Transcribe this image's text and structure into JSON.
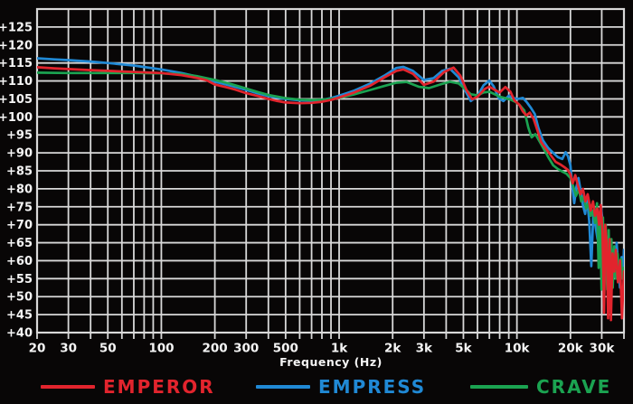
{
  "chart_data": {
    "type": "line",
    "title": "",
    "xlabel": "Frequency  (Hz)",
    "ylabel": "",
    "x_scale": "log",
    "x_range_hz": [
      20,
      40000
    ],
    "y_range_db": [
      40,
      130
    ],
    "grid": true,
    "grid_color": "#d8d8d8",
    "background_color": "#080606",
    "text_color": "#f5f5f5",
    "legend_position": "bottom",
    "y_ticks": [
      {
        "db": 125,
        "label": "+125"
      },
      {
        "db": 120,
        "label": "+120"
      },
      {
        "db": 115,
        "label": "+115"
      },
      {
        "db": 110,
        "label": "+110"
      },
      {
        "db": 105,
        "label": "+105"
      },
      {
        "db": 100,
        "label": "+100"
      },
      {
        "db": 95,
        "label": "+95"
      },
      {
        "db": 90,
        "label": "+90"
      },
      {
        "db": 85,
        "label": "+85"
      },
      {
        "db": 80,
        "label": "+80"
      },
      {
        "db": 75,
        "label": "+75"
      },
      {
        "db": 70,
        "label": "+70"
      },
      {
        "db": 65,
        "label": "+65"
      },
      {
        "db": 60,
        "label": "+60"
      },
      {
        "db": 55,
        "label": "+55"
      },
      {
        "db": 50,
        "label": "+50"
      },
      {
        "db": 45,
        "label": "+45"
      },
      {
        "db": 40,
        "label": "+40"
      }
    ],
    "x_ticks": [
      {
        "hz": 20,
        "label": "20"
      },
      {
        "hz": 30,
        "label": "30"
      },
      {
        "hz": 50,
        "label": "50"
      },
      {
        "hz": 100,
        "label": "100"
      },
      {
        "hz": 200,
        "label": "200"
      },
      {
        "hz": 300,
        "label": "300"
      },
      {
        "hz": 500,
        "label": "500"
      },
      {
        "hz": 1000,
        "label": "1k"
      },
      {
        "hz": 2000,
        "label": "2k"
      },
      {
        "hz": 3000,
        "label": "3k"
      },
      {
        "hz": 5000,
        "label": "5k"
      },
      {
        "hz": 10000,
        "label": "10k"
      },
      {
        "hz": 20000,
        "label": "20k"
      },
      {
        "hz": 30000,
        "label": "30k"
      }
    ],
    "x_minor_gridlines_hz": [
      30,
      40,
      50,
      60,
      70,
      80,
      90,
      100,
      200,
      300,
      400,
      500,
      600,
      700,
      800,
      900,
      1000,
      2000,
      3000,
      4000,
      5000,
      6000,
      7000,
      8000,
      9000,
      10000,
      20000,
      30000
    ],
    "series": [
      {
        "name": "EMPEROR",
        "color": "#e2242d",
        "points": [
          [
            20,
            113.8
          ],
          [
            25,
            113.5
          ],
          [
            30,
            113.3
          ],
          [
            40,
            113.0
          ],
          [
            50,
            112.8
          ],
          [
            70,
            112.5
          ],
          [
            100,
            112.2
          ],
          [
            130,
            111.6
          ],
          [
            160,
            110.8
          ],
          [
            180,
            110.2
          ],
          [
            200,
            109.0
          ],
          [
            230,
            108.3
          ],
          [
            260,
            107.6
          ],
          [
            300,
            106.6
          ],
          [
            350,
            105.8
          ],
          [
            400,
            105.0
          ],
          [
            450,
            104.4
          ],
          [
            500,
            104.0
          ],
          [
            600,
            103.8
          ],
          [
            700,
            103.9
          ],
          [
            800,
            104.2
          ],
          [
            900,
            104.7
          ],
          [
            1000,
            105.4
          ],
          [
            1200,
            106.7
          ],
          [
            1500,
            108.7
          ],
          [
            1800,
            111.0
          ],
          [
            2100,
            112.8
          ],
          [
            2300,
            113.2
          ],
          [
            2600,
            112.0
          ],
          [
            3000,
            108.9
          ],
          [
            3400,
            109.8
          ],
          [
            3900,
            112.5
          ],
          [
            4400,
            113.7
          ],
          [
            4800,
            111.5
          ],
          [
            5200,
            107.5
          ],
          [
            5600,
            104.9
          ],
          [
            6000,
            105.6
          ],
          [
            6600,
            107.8
          ],
          [
            7000,
            108.4
          ],
          [
            7500,
            107.5
          ],
          [
            8000,
            106.8
          ],
          [
            8600,
            108.3
          ],
          [
            9200,
            107.0
          ],
          [
            9700,
            104.5
          ],
          [
            10300,
            103.4
          ],
          [
            10800,
            101.5
          ],
          [
            11300,
            100.4
          ],
          [
            11800,
            101.2
          ],
          [
            12400,
            99.5
          ],
          [
            13000,
            96.5
          ],
          [
            13700,
            93.0
          ],
          [
            14500,
            91.3
          ],
          [
            15500,
            89.3
          ],
          [
            16500,
            87.5
          ],
          [
            17500,
            86.8
          ],
          [
            18500,
            86.0
          ],
          [
            19300,
            85.3
          ],
          [
            20000,
            84.0
          ],
          [
            20600,
            81.5
          ],
          [
            21300,
            83.8
          ],
          [
            22000,
            81.0
          ],
          [
            22800,
            78.5
          ],
          [
            23500,
            80.0
          ],
          [
            24300,
            76.5
          ],
          [
            25000,
            78.5
          ],
          [
            26000,
            74.0
          ],
          [
            26800,
            76.5
          ],
          [
            27500,
            72.5
          ],
          [
            28300,
            74.5
          ],
          [
            29000,
            70.0
          ],
          [
            29600,
            75.5
          ],
          [
            30300,
            68.0
          ],
          [
            30900,
            45.5
          ],
          [
            31400,
            70.0
          ],
          [
            32000,
            65.0
          ],
          [
            32600,
            44.0
          ],
          [
            33200,
            66.0
          ],
          [
            33800,
            43.5
          ],
          [
            34500,
            62.0
          ],
          [
            35300,
            57.0
          ],
          [
            36000,
            63.0
          ],
          [
            37000,
            54.0
          ],
          [
            38000,
            60.0
          ],
          [
            39000,
            44.0
          ],
          [
            40000,
            57.0
          ]
        ]
      },
      {
        "name": "EMPRESS",
        "color": "#2089d5",
        "points": [
          [
            20,
            116.3
          ],
          [
            25,
            116.0
          ],
          [
            30,
            115.8
          ],
          [
            40,
            115.4
          ],
          [
            50,
            115.0
          ],
          [
            70,
            114.3
          ],
          [
            100,
            113.2
          ],
          [
            130,
            112.2
          ],
          [
            160,
            111.2
          ],
          [
            200,
            109.8
          ],
          [
            240,
            108.8
          ],
          [
            300,
            107.5
          ],
          [
            350,
            106.5
          ],
          [
            400,
            105.8
          ],
          [
            500,
            105.0
          ],
          [
            600,
            104.6
          ],
          [
            700,
            104.5
          ],
          [
            800,
            104.7
          ],
          [
            900,
            105.2
          ],
          [
            1000,
            105.9
          ],
          [
            1200,
            107.2
          ],
          [
            1500,
            109.3
          ],
          [
            1800,
            111.5
          ],
          [
            2100,
            113.6
          ],
          [
            2300,
            113.9
          ],
          [
            2600,
            112.8
          ],
          [
            3000,
            110.3
          ],
          [
            3400,
            110.8
          ],
          [
            3800,
            112.8
          ],
          [
            4200,
            113.4
          ],
          [
            4700,
            111.0
          ],
          [
            5100,
            107.5
          ],
          [
            5500,
            104.4
          ],
          [
            6000,
            105.8
          ],
          [
            6500,
            108.8
          ],
          [
            7000,
            110.1
          ],
          [
            7400,
            108.5
          ],
          [
            7900,
            105.2
          ],
          [
            8400,
            104.4
          ],
          [
            9000,
            105.9
          ],
          [
            9600,
            105.2
          ],
          [
            10200,
            105.0
          ],
          [
            10800,
            105.3
          ],
          [
            11400,
            104.0
          ],
          [
            12000,
            102.5
          ],
          [
            12600,
            100.8
          ],
          [
            13200,
            97.0
          ],
          [
            14000,
            93.5
          ],
          [
            15000,
            91.3
          ],
          [
            16000,
            90.0
          ],
          [
            17000,
            88.8
          ],
          [
            18000,
            88.3
          ],
          [
            18800,
            90.2
          ],
          [
            19400,
            89.0
          ],
          [
            20000,
            86.5
          ],
          [
            20500,
            80.5
          ],
          [
            21000,
            76.0
          ],
          [
            21600,
            80.5
          ],
          [
            22200,
            83.0
          ],
          [
            22900,
            79.0
          ],
          [
            23500,
            75.5
          ],
          [
            24200,
            73.0
          ],
          [
            24800,
            77.5
          ],
          [
            25500,
            71.0
          ],
          [
            26200,
            58.5
          ],
          [
            26900,
            73.0
          ],
          [
            27600,
            70.0
          ],
          [
            28400,
            66.0
          ],
          [
            29000,
            71.5
          ],
          [
            29800,
            74.5
          ],
          [
            30500,
            70.0
          ],
          [
            31200,
            60.0
          ],
          [
            31800,
            55.0
          ],
          [
            32500,
            63.0
          ],
          [
            33200,
            57.0
          ],
          [
            34000,
            52.0
          ],
          [
            34800,
            60.0
          ],
          [
            35600,
            55.5
          ],
          [
            36400,
            65.0
          ],
          [
            37200,
            58.0
          ],
          [
            38000,
            52.5
          ],
          [
            38800,
            61.0
          ],
          [
            39500,
            56.0
          ],
          [
            40000,
            63.0
          ]
        ]
      },
      {
        "name": "CRAVE",
        "color": "#1ba351",
        "points": [
          [
            20,
            112.3
          ],
          [
            30,
            112.2
          ],
          [
            50,
            112.2
          ],
          [
            70,
            112.2
          ],
          [
            100,
            112.1
          ],
          [
            130,
            111.9
          ],
          [
            160,
            111.3
          ],
          [
            200,
            110.3
          ],
          [
            240,
            109.3
          ],
          [
            300,
            107.9
          ],
          [
            350,
            106.9
          ],
          [
            400,
            106.1
          ],
          [
            500,
            105.2
          ],
          [
            600,
            104.8
          ],
          [
            700,
            104.7
          ],
          [
            800,
            104.8
          ],
          [
            900,
            105.0
          ],
          [
            1000,
            105.3
          ],
          [
            1200,
            106.2
          ],
          [
            1500,
            107.5
          ],
          [
            1800,
            108.6
          ],
          [
            2100,
            109.5
          ],
          [
            2400,
            109.7
          ],
          [
            2800,
            108.4
          ],
          [
            3200,
            108.0
          ],
          [
            3700,
            109.0
          ],
          [
            4200,
            109.8
          ],
          [
            4700,
            109.3
          ],
          [
            5100,
            107.8
          ],
          [
            5500,
            106.3
          ],
          [
            6000,
            106.0
          ],
          [
            6500,
            106.8
          ],
          [
            7000,
            107.0
          ],
          [
            7500,
            106.3
          ],
          [
            8000,
            105.6
          ],
          [
            8600,
            105.2
          ],
          [
            9200,
            104.8
          ],
          [
            9800,
            104.2
          ],
          [
            10400,
            103.2
          ],
          [
            11000,
            101.8
          ],
          [
            11600,
            97.0
          ],
          [
            12100,
            94.3
          ],
          [
            12700,
            95.2
          ],
          [
            13300,
            93.5
          ],
          [
            14000,
            91.5
          ],
          [
            15000,
            88.8
          ],
          [
            16000,
            86.5
          ],
          [
            17000,
            85.5
          ],
          [
            18000,
            84.8
          ],
          [
            19000,
            84.2
          ],
          [
            20000,
            83.0
          ],
          [
            20800,
            80.5
          ],
          [
            21500,
            78.0
          ],
          [
            22300,
            80.0
          ],
          [
            23000,
            76.5
          ],
          [
            23800,
            78.0
          ],
          [
            24500,
            74.5
          ],
          [
            25300,
            76.0
          ],
          [
            26000,
            72.5
          ],
          [
            26800,
            74.0
          ],
          [
            27500,
            70.5
          ],
          [
            28200,
            76.0
          ],
          [
            28800,
            58.0
          ],
          [
            29400,
            74.0
          ],
          [
            29900,
            52.0
          ],
          [
            30500,
            72.0
          ],
          [
            31000,
            50.5
          ],
          [
            31600,
            70.0
          ],
          [
            32200,
            52.0
          ],
          [
            32800,
            68.5
          ],
          [
            33400,
            50.0
          ],
          [
            34000,
            66.0
          ],
          [
            34600,
            52.5
          ],
          [
            35300,
            64.0
          ],
          [
            36000,
            55.0
          ],
          [
            36800,
            62.0
          ],
          [
            37600,
            56.0
          ],
          [
            38500,
            60.5
          ],
          [
            39200,
            55.0
          ],
          [
            40000,
            58.0
          ]
        ]
      }
    ]
  }
}
